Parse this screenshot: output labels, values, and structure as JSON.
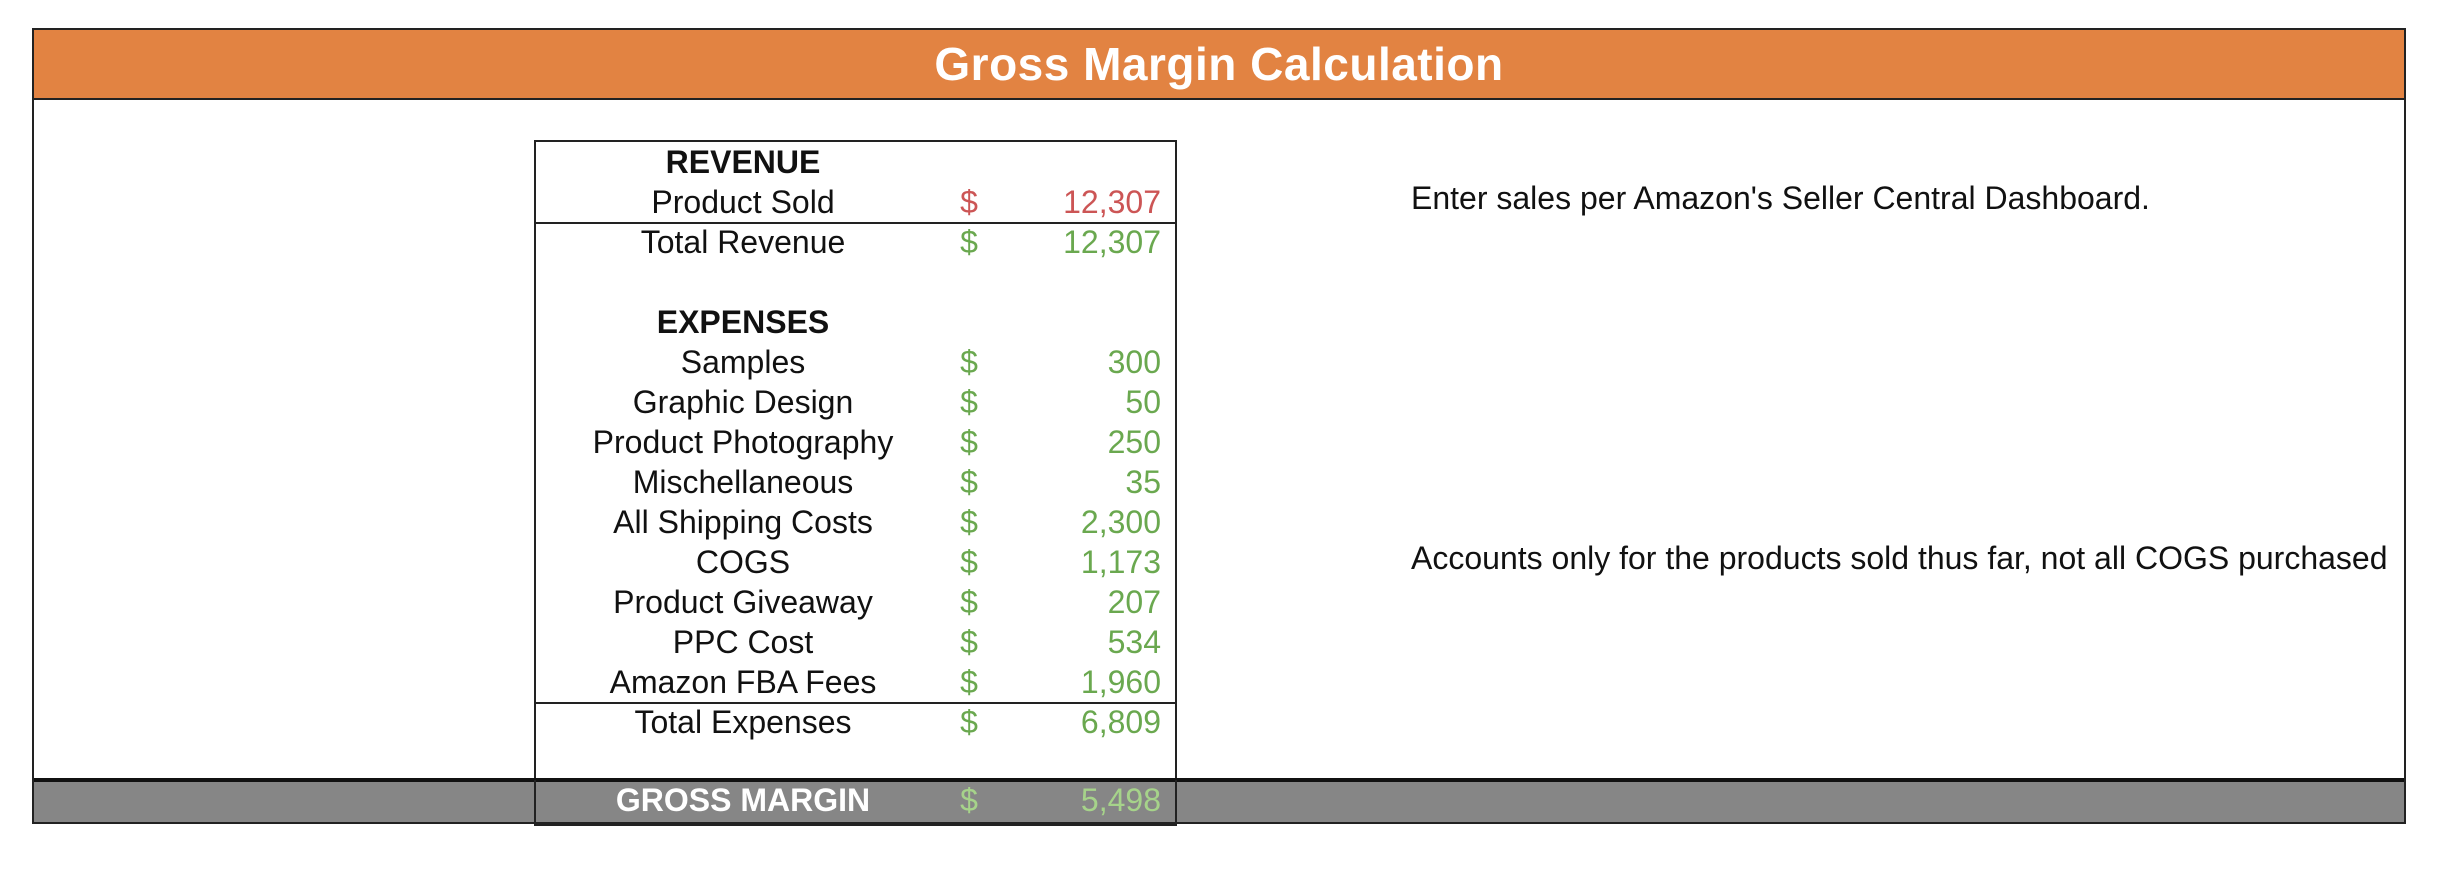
{
  "title": "Gross Margin Calculation",
  "revenue": {
    "heading": "REVENUE",
    "items": [
      {
        "label": "Product Sold",
        "currency": "$",
        "amount": "12,307"
      }
    ],
    "total": {
      "label": "Total Revenue",
      "currency": "$",
      "amount": "12,307"
    }
  },
  "expenses": {
    "heading": "EXPENSES",
    "items": [
      {
        "label": "Samples",
        "currency": "$",
        "amount": "300"
      },
      {
        "label": "Graphic Design",
        "currency": "$",
        "amount": "50"
      },
      {
        "label": "Product Photography",
        "currency": "$",
        "amount": "250"
      },
      {
        "label": "Mischellaneous",
        "currency": "$",
        "amount": "35"
      },
      {
        "label": "All Shipping Costs",
        "currency": "$",
        "amount": "2,300"
      },
      {
        "label": "COGS",
        "currency": "$",
        "amount": "1,173"
      },
      {
        "label": "Product Giveaway",
        "currency": "$",
        "amount": "207"
      },
      {
        "label": "PPC Cost",
        "currency": "$",
        "amount": "534"
      },
      {
        "label": "Amazon FBA Fees",
        "currency": "$",
        "amount": "1,960"
      }
    ],
    "total": {
      "label": "Total Expenses",
      "currency": "$",
      "amount": "6,809"
    }
  },
  "gross_margin": {
    "label": "GROSS MARGIN",
    "currency": "$",
    "amount": "5,498"
  },
  "notes": {
    "sales": "Enter sales per Amazon's Seller Central Dashboard.",
    "cogs": "Accounts only for the products sold thus far, not all COGS purchased"
  },
  "colors": {
    "title_bar": "#e28342",
    "input_value": "#cc5555",
    "calculated_value": "#6aa84f",
    "footer_bar": "#868686"
  }
}
